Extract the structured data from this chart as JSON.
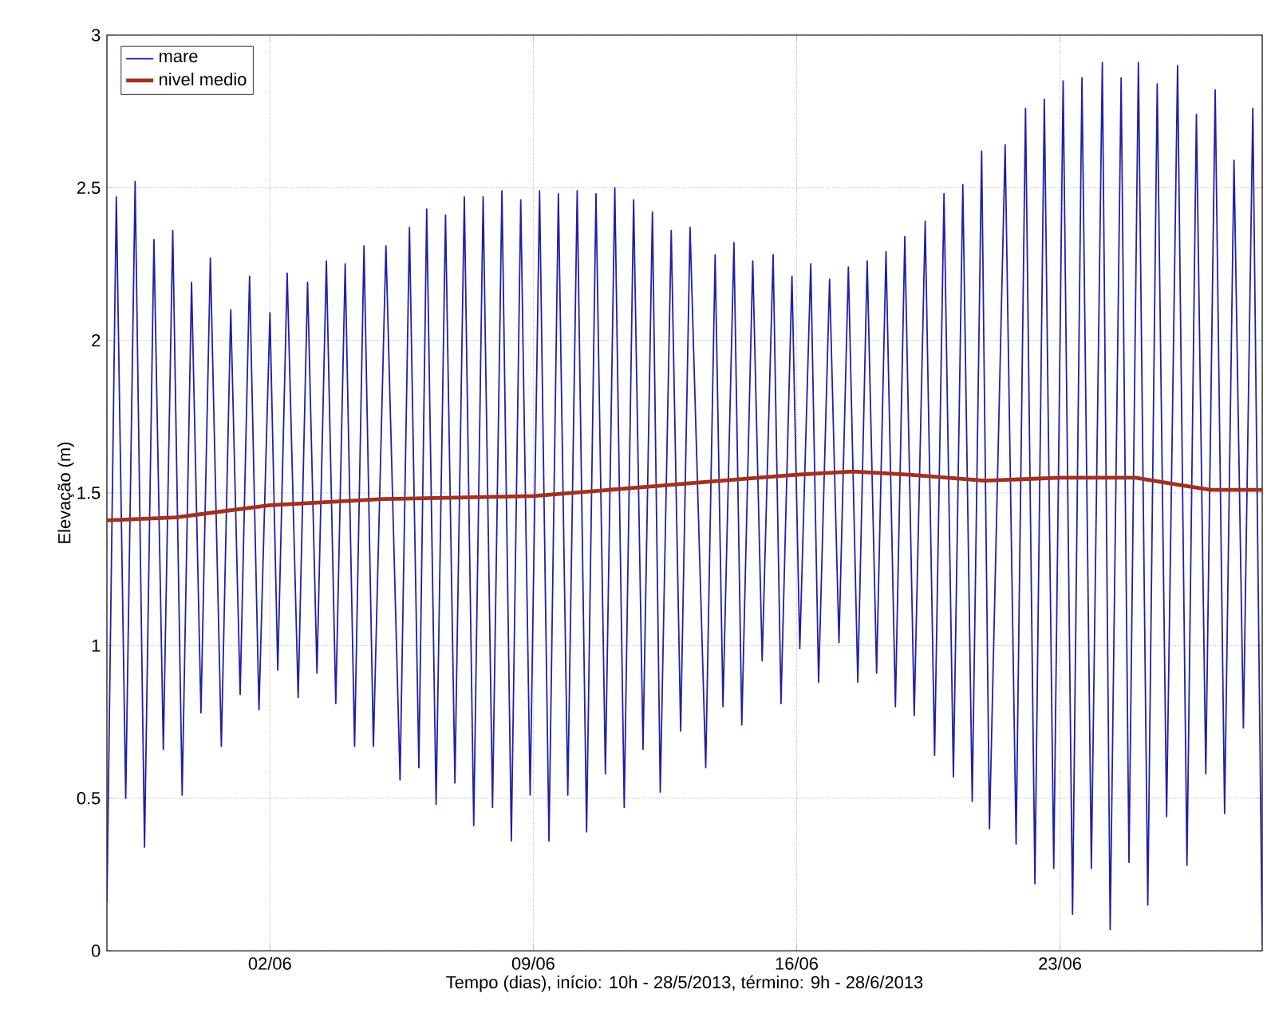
{
  "chart_data": {
    "type": "line",
    "xlabel": "Tempo (dias), início: 10h - 28/5/2013, término: 9h - 28/6/2013",
    "ylabel": "Elevação (m)",
    "xlim": [
      "2013-05-28T16:00",
      "2013-06-28T09:00"
    ],
    "xticks": [
      {
        "value": "2013-06-02",
        "label": "02/06"
      },
      {
        "value": "2013-06-09",
        "label": "09/06"
      },
      {
        "value": "2013-06-16",
        "label": "16/06"
      },
      {
        "value": "2013-06-23",
        "label": "23/06"
      }
    ],
    "ylim": [
      0,
      3
    ],
    "yticks": [
      0,
      0.5,
      1,
      1.5,
      2,
      2.5,
      3
    ],
    "grid": true,
    "legend": "top left",
    "marker": "none",
    "series": [
      {
        "name": "mare",
        "color": "#2020a8",
        "x": [
          "2013-05-28T16:00",
          "2013-05-28T22:00",
          "2013-05-29T04:00",
          "2013-05-29T10:00",
          "2013-05-29T16:00",
          "2013-05-29T22:00",
          "2013-05-30T04:00",
          "2013-05-30T10:00",
          "2013-05-30T16:00",
          "2013-05-30T22:00",
          "2013-05-31T04:00",
          "2013-05-31T10:00",
          "2013-05-31T17:00",
          "2013-05-31T23:00",
          "2013-06-01T05:00",
          "2013-06-01T11:00",
          "2013-06-01T17:00",
          "2013-06-02T00:00",
          "2013-06-02T05:00",
          "2013-06-02T11:00",
          "2013-06-02T18:00",
          "2013-06-03T00:00",
          "2013-06-03T06:00",
          "2013-06-03T12:00",
          "2013-06-03T18:00",
          "2013-06-04T00:00",
          "2013-06-04T06:00",
          "2013-06-04T12:00",
          "2013-06-04T18:00",
          "2013-06-05T02:00",
          "2013-06-05T11:00",
          "2013-06-05T17:00",
          "2013-06-05T23:00",
          "2013-06-06T04:00",
          "2013-06-06T10:00",
          "2013-06-06T16:00",
          "2013-06-06T22:00",
          "2013-06-07T04:00",
          "2013-06-07T10:00",
          "2013-06-07T16:00",
          "2013-06-07T22:00",
          "2013-06-08T04:00",
          "2013-06-08T10:00",
          "2013-06-08T16:00",
          "2013-06-08T22:00",
          "2013-06-09T04:00",
          "2013-06-09T10:00",
          "2013-06-09T16:00",
          "2013-06-09T22:00",
          "2013-06-10T04:00",
          "2013-06-10T10:00",
          "2013-06-10T16:00",
          "2013-06-10T22:00",
          "2013-06-11T04:00",
          "2013-06-11T10:00",
          "2013-06-11T16:00",
          "2013-06-11T22:00",
          "2013-06-12T04:00",
          "2013-06-12T09:00",
          "2013-06-12T16:00",
          "2013-06-12T22:00",
          "2013-06-13T04:00",
          "2013-06-13T14:00",
          "2013-06-13T20:00",
          "2013-06-14T01:00",
          "2013-06-14T08:00",
          "2013-06-14T13:00",
          "2013-06-14T20:00",
          "2013-06-15T02:00",
          "2013-06-15T09:00",
          "2013-06-15T14:00",
          "2013-06-15T21:00",
          "2013-06-16T02:00",
          "2013-06-16T09:00",
          "2013-06-16T14:00",
          "2013-06-16T21:00",
          "2013-06-17T03:00",
          "2013-06-17T09:00",
          "2013-06-17T15:00",
          "2013-06-17T21:00",
          "2013-06-18T03:00",
          "2013-06-18T09:00",
          "2013-06-18T15:00",
          "2013-06-18T21:00",
          "2013-06-19T03:00",
          "2013-06-19T10:00",
          "2013-06-19T16:00",
          "2013-06-19T22:00",
          "2013-06-20T04:00",
          "2013-06-20T10:00",
          "2013-06-20T16:00",
          "2013-06-20T22:00",
          "2013-06-21T03:00",
          "2013-06-21T13:00",
          "2013-06-21T20:00",
          "2013-06-22T02:00",
          "2013-06-22T08:00",
          "2013-06-22T14:00",
          "2013-06-22T20:00",
          "2013-06-23T02:00",
          "2013-06-23T08:00",
          "2013-06-23T14:00",
          "2013-06-23T20:00",
          "2013-06-24T03:00",
          "2013-06-24T08:00",
          "2013-06-24T15:00",
          "2013-06-24T20:00",
          "2013-06-25T02:00",
          "2013-06-25T08:00",
          "2013-06-25T14:00",
          "2013-06-25T20:00",
          "2013-06-26T03:00",
          "2013-06-26T09:00",
          "2013-06-26T15:00",
          "2013-06-26T21:00",
          "2013-06-27T03:00",
          "2013-06-27T09:00",
          "2013-06-27T15:00",
          "2013-06-27T21:00",
          "2013-06-28T03:00",
          "2013-06-28T09:00"
        ],
        "values": [
          0.16,
          2.47,
          0.5,
          2.52,
          0.34,
          2.33,
          0.66,
          2.36,
          0.51,
          2.19,
          0.78,
          2.27,
          0.67,
          2.1,
          0.84,
          2.21,
          0.79,
          2.09,
          0.92,
          2.22,
          0.83,
          2.19,
          0.91,
          2.26,
          0.81,
          2.25,
          0.67,
          2.31,
          0.67,
          2.31,
          0.56,
          2.37,
          0.6,
          2.43,
          0.48,
          2.41,
          0.55,
          2.47,
          0.41,
          2.47,
          0.47,
          2.49,
          0.36,
          2.46,
          0.51,
          2.49,
          0.36,
          2.48,
          0.51,
          2.49,
          0.39,
          2.48,
          0.58,
          2.5,
          0.47,
          2.46,
          0.66,
          2.42,
          0.52,
          2.36,
          0.72,
          2.37,
          0.6,
          2.28,
          0.8,
          2.32,
          0.74,
          2.26,
          0.95,
          2.28,
          0.81,
          2.21,
          0.99,
          2.25,
          0.88,
          2.2,
          1.01,
          2.24,
          0.88,
          2.26,
          0.91,
          2.29,
          0.8,
          2.34,
          0.77,
          2.39,
          0.64,
          2.48,
          0.57,
          2.51,
          0.49,
          2.62,
          0.4,
          2.64,
          0.35,
          2.76,
          0.22,
          2.79,
          0.27,
          2.85,
          0.12,
          2.86,
          0.27,
          2.91,
          0.07,
          2.86,
          0.29,
          2.91,
          0.15,
          2.84,
          0.44,
          2.9,
          0.28,
          2.74,
          0.58,
          2.82,
          0.45,
          2.59,
          0.73,
          2.76,
          0.02
        ]
      },
      {
        "name": "nivel medio",
        "color": "#a0321e",
        "x": [
          "2013-05-28T16:00",
          "2013-05-30T12:00",
          "2013-06-02T00:00",
          "2013-06-05T00:00",
          "2013-06-09T00:00",
          "2013-06-12T00:00",
          "2013-06-14T00:00",
          "2013-06-16T00:00",
          "2013-06-17T12:00",
          "2013-06-19T00:00",
          "2013-06-21T00:00",
          "2013-06-23T00:00",
          "2013-06-25T00:00",
          "2013-06-26T00:00",
          "2013-06-27T00:00",
          "2013-06-28T09:00"
        ],
        "values": [
          1.41,
          1.42,
          1.46,
          1.48,
          1.49,
          1.52,
          1.54,
          1.56,
          1.57,
          1.56,
          1.54,
          1.55,
          1.55,
          1.53,
          1.51,
          1.51
        ]
      }
    ]
  }
}
